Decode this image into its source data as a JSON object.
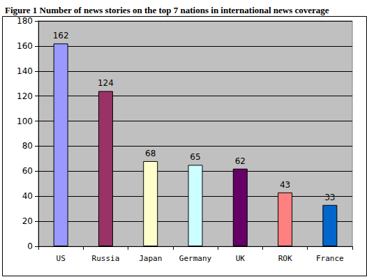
{
  "chart_data": {
    "type": "bar",
    "title": "Figure 1 Number of news stories on the top 7 nations in international news coverage",
    "categories": [
      "US",
      "Russia",
      "Japan",
      "Germany",
      "UK",
      "ROK",
      "France"
    ],
    "values": [
      162,
      124,
      68,
      65,
      62,
      43,
      33
    ],
    "colors": [
      "#9999ff",
      "#993366",
      "#ffffcc",
      "#ccffff",
      "#660066",
      "#ff8080",
      "#0066cc"
    ],
    "ylim": [
      0,
      180
    ],
    "yticks": [
      0,
      20,
      40,
      60,
      80,
      100,
      120,
      140,
      160,
      180
    ],
    "grid": true,
    "data_labels": true
  }
}
